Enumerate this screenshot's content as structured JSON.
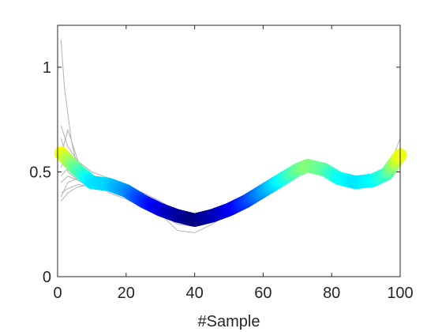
{
  "chart_data": {
    "type": "line",
    "title": "",
    "xlabel": "#Sample",
    "ylabel": "",
    "xlim": [
      0,
      100
    ],
    "ylim": [
      0,
      1.2
    ],
    "x_ticks": [
      0,
      20,
      40,
      60,
      80,
      100
    ],
    "y_ticks": [
      0,
      0.5,
      1
    ],
    "x_tick_labels": [
      "0",
      "20",
      "40",
      "60",
      "80",
      "100"
    ],
    "y_tick_labels": [
      "0",
      "0.5",
      "1"
    ],
    "grid": false,
    "legend": "none",
    "colors": {
      "background_lines": "#b3b3b3",
      "axis": "#262626",
      "colormap": [
        "#00007f",
        "#0000ff",
        "#007fff",
        "#00ffff",
        "#7fff7f",
        "#ffff00"
      ]
    },
    "mean_curve": {
      "x": [
        1,
        5,
        10,
        15,
        20,
        25,
        30,
        35,
        40,
        45,
        50,
        55,
        60,
        65,
        70,
        73,
        78,
        82,
        87,
        92,
        96,
        100
      ],
      "y": [
        0.59,
        0.52,
        0.45,
        0.44,
        0.41,
        0.36,
        0.32,
        0.29,
        0.27,
        0.29,
        0.32,
        0.36,
        0.41,
        0.46,
        0.51,
        0.53,
        0.51,
        0.47,
        0.45,
        0.46,
        0.49,
        0.58
      ]
    },
    "background_series": [
      {
        "x": [
          1,
          2,
          4,
          6,
          10,
          15,
          20,
          25,
          30,
          35,
          40,
          45,
          50,
          55,
          60,
          65,
          70,
          73,
          78,
          82,
          87,
          92,
          96,
          100
        ],
        "y": [
          1.13,
          0.9,
          0.65,
          0.5,
          0.45,
          0.43,
          0.4,
          0.35,
          0.31,
          0.27,
          0.26,
          0.28,
          0.32,
          0.36,
          0.41,
          0.47,
          0.52,
          0.55,
          0.52,
          0.47,
          0.44,
          0.45,
          0.49,
          0.66
        ]
      },
      {
        "x": [
          1,
          3,
          6,
          10,
          15,
          20,
          25,
          30,
          35,
          40,
          45,
          50,
          55,
          60,
          65,
          70,
          73,
          78,
          82,
          87,
          92,
          96,
          100
        ],
        "y": [
          0.72,
          0.62,
          0.55,
          0.5,
          0.47,
          0.42,
          0.38,
          0.33,
          0.29,
          0.28,
          0.31,
          0.33,
          0.37,
          0.4,
          0.45,
          0.5,
          0.5,
          0.5,
          0.48,
          0.47,
          0.47,
          0.5,
          0.6
        ]
      },
      {
        "x": [
          1,
          3,
          6,
          10,
          15,
          20,
          25,
          30,
          35,
          40,
          45,
          50,
          55,
          60,
          65,
          70,
          73,
          78,
          82,
          87,
          92,
          96,
          100
        ],
        "y": [
          0.38,
          0.45,
          0.47,
          0.42,
          0.43,
          0.38,
          0.34,
          0.3,
          0.25,
          0.24,
          0.27,
          0.3,
          0.35,
          0.42,
          0.47,
          0.52,
          0.55,
          0.51,
          0.46,
          0.44,
          0.45,
          0.48,
          0.55
        ]
      },
      {
        "x": [
          1,
          3,
          6,
          10,
          15,
          20,
          25,
          30,
          35,
          40,
          45,
          50,
          55,
          60,
          65,
          70,
          73,
          78,
          82,
          87,
          92,
          96,
          100
        ],
        "y": [
          0.48,
          0.52,
          0.5,
          0.46,
          0.4,
          0.37,
          0.33,
          0.3,
          0.22,
          0.21,
          0.25,
          0.3,
          0.35,
          0.4,
          0.45,
          0.49,
          0.51,
          0.53,
          0.49,
          0.45,
          0.44,
          0.47,
          0.56
        ]
      },
      {
        "x": [
          1,
          3,
          6,
          10,
          15,
          20,
          25,
          30,
          35,
          40,
          45,
          50,
          55,
          60,
          65,
          70,
          73,
          78,
          82,
          87,
          92,
          96,
          100
        ],
        "y": [
          0.55,
          0.58,
          0.5,
          0.44,
          0.46,
          0.43,
          0.4,
          0.36,
          0.31,
          0.3,
          0.31,
          0.34,
          0.38,
          0.42,
          0.47,
          0.53,
          0.56,
          0.53,
          0.49,
          0.46,
          0.47,
          0.5,
          0.58
        ]
      },
      {
        "x": [
          1,
          3,
          6,
          10,
          15,
          20,
          25,
          30,
          35,
          40,
          45,
          50,
          55,
          60,
          65,
          70,
          73,
          78,
          82,
          87,
          92,
          96,
          100
        ],
        "y": [
          0.6,
          0.5,
          0.46,
          0.44,
          0.42,
          0.4,
          0.36,
          0.32,
          0.28,
          0.25,
          0.28,
          0.31,
          0.35,
          0.4,
          0.44,
          0.48,
          0.52,
          0.5,
          0.46,
          0.44,
          0.45,
          0.49,
          0.57
        ]
      },
      {
        "x": [
          1,
          3,
          6,
          10,
          15,
          20,
          25,
          30,
          35,
          40,
          45,
          50,
          55,
          60,
          65,
          70,
          73,
          78,
          82,
          87,
          92,
          96,
          100
        ],
        "y": [
          0.4,
          0.42,
          0.44,
          0.43,
          0.45,
          0.4,
          0.35,
          0.31,
          0.27,
          0.26,
          0.27,
          0.31,
          0.36,
          0.41,
          0.46,
          0.5,
          0.52,
          0.52,
          0.48,
          0.46,
          0.46,
          0.49,
          0.59
        ]
      },
      {
        "x": [
          1,
          3,
          6,
          10,
          15,
          20,
          25,
          30,
          35,
          40,
          45,
          50,
          55,
          60,
          65,
          70,
          73,
          78,
          82,
          87,
          92,
          96,
          100
        ],
        "y": [
          0.66,
          0.55,
          0.48,
          0.47,
          0.44,
          0.41,
          0.37,
          0.33,
          0.3,
          0.28,
          0.3,
          0.33,
          0.36,
          0.41,
          0.46,
          0.51,
          0.53,
          0.5,
          0.47,
          0.45,
          0.46,
          0.5,
          0.6
        ]
      },
      {
        "x": [
          1,
          3,
          6,
          10,
          15,
          20,
          25,
          30,
          35,
          40,
          45,
          50,
          55,
          60,
          65,
          70,
          73,
          78,
          82,
          87,
          92,
          96,
          100
        ],
        "y": [
          0.36,
          0.4,
          0.43,
          0.44,
          0.41,
          0.39,
          0.36,
          0.31,
          0.28,
          0.26,
          0.29,
          0.32,
          0.35,
          0.4,
          0.45,
          0.5,
          0.52,
          0.5,
          0.47,
          0.45,
          0.45,
          0.48,
          0.56
        ]
      },
      {
        "x": [
          1,
          3,
          6,
          10,
          15,
          20,
          25,
          30,
          35,
          40,
          45,
          50,
          55,
          60,
          65,
          70,
          73,
          78,
          82,
          87,
          92,
          96,
          100
        ],
        "y": [
          0.52,
          0.6,
          0.52,
          0.48,
          0.43,
          0.42,
          0.38,
          0.34,
          0.3,
          0.29,
          0.3,
          0.33,
          0.37,
          0.42,
          0.46,
          0.5,
          0.52,
          0.51,
          0.48,
          0.46,
          0.46,
          0.49,
          0.57
        ]
      },
      {
        "x": [
          1,
          3,
          6,
          10,
          15,
          20,
          25,
          30,
          35,
          40,
          45,
          50,
          55,
          60,
          65,
          70,
          73,
          78,
          82,
          87,
          92,
          96,
          100
        ],
        "y": [
          0.45,
          0.48,
          0.46,
          0.42,
          0.44,
          0.39,
          0.34,
          0.3,
          0.27,
          0.25,
          0.28,
          0.3,
          0.34,
          0.39,
          0.45,
          0.51,
          0.54,
          0.52,
          0.48,
          0.46,
          0.47,
          0.5,
          0.58
        ]
      },
      {
        "x": [
          1,
          3,
          6,
          10,
          15,
          20,
          25,
          30,
          35,
          40,
          45,
          50,
          55,
          60,
          65,
          70,
          73,
          78,
          82,
          87,
          92,
          96,
          100
        ],
        "y": [
          0.58,
          0.7,
          0.55,
          0.47,
          0.45,
          0.43,
          0.39,
          0.34,
          0.31,
          0.29,
          0.31,
          0.34,
          0.38,
          0.43,
          0.47,
          0.52,
          0.54,
          0.51,
          0.47,
          0.45,
          0.46,
          0.49,
          0.6
        ]
      }
    ]
  }
}
